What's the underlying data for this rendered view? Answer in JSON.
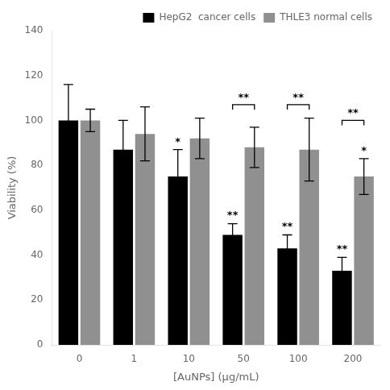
{
  "chart_data": {
    "type": "bar",
    "categories": [
      "0",
      "1",
      "10",
      "50",
      "100",
      "200"
    ],
    "series": [
      {
        "name": "HepG2  cancer cells",
        "color": "#000000",
        "values": [
          100,
          87,
          75,
          49,
          43,
          33
        ],
        "errors": [
          16,
          13,
          12,
          5,
          6,
          6
        ]
      },
      {
        "name": "THLE3 normal cells",
        "color": "#909090",
        "values": [
          100,
          94,
          92,
          88,
          87,
          75
        ],
        "errors": [
          5,
          12,
          9,
          9,
          14,
          8
        ]
      }
    ],
    "xlabel": "[AuNPs] (μg/mL)",
    "ylabel": "Viability (%)",
    "ylim": [
      0,
      140
    ],
    "yticks": [
      0,
      20,
      40,
      60,
      80,
      100,
      120,
      140
    ],
    "grid": false,
    "legend": "upper right",
    "annotations": [
      {
        "category": "10",
        "series": "HepG2  cancer cells",
        "text": "*"
      },
      {
        "category": "50",
        "series": "HepG2  cancer cells",
        "text": "**"
      },
      {
        "category": "100",
        "series": "HepG2  cancer cells",
        "text": "**"
      },
      {
        "category": "200",
        "series": "HepG2  cancer cells",
        "text": "**"
      },
      {
        "category": "200",
        "series": "THLE3 normal cells",
        "text": "*"
      }
    ],
    "brackets": [
      {
        "category": "50",
        "y": 107,
        "text": "**"
      },
      {
        "category": "100",
        "y": 107,
        "text": "**"
      },
      {
        "category": "200",
        "y": 100,
        "text": "**"
      }
    ]
  }
}
